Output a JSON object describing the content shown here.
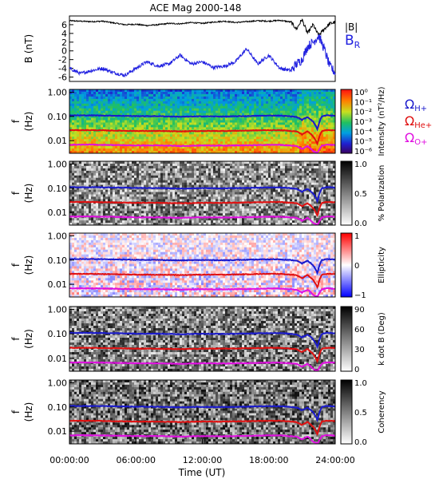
{
  "title": "ACE Mag 2000-148",
  "chart_data": [
    {
      "type": "line",
      "ylabel": "B (nT)",
      "ylim": [
        -7,
        8
      ],
      "yticks": [
        "-6",
        "-4",
        "-2",
        "0",
        "2",
        "4",
        "6"
      ],
      "legend": [
        {
          "label": "|B|",
          "color": "#000000"
        },
        {
          "label": "B",
          "sub": "R",
          "color": "#2020e0"
        }
      ],
      "series": [
        {
          "name": "|B|",
          "color": "#000000",
          "x": [
            0,
            1,
            2,
            3,
            4,
            5,
            6,
            7,
            8,
            9,
            10,
            11,
            12,
            13,
            14,
            15,
            16,
            17,
            18,
            19,
            20,
            20.5,
            21,
            21.5,
            22,
            22.5,
            23,
            23.5,
            24
          ],
          "y": [
            6.9,
            6.8,
            6.7,
            6.8,
            6.4,
            6.0,
            6.1,
            5.8,
            6.0,
            6.3,
            6.2,
            6.5,
            6.3,
            6.6,
            6.8,
            6.5,
            6.7,
            6.9,
            6.8,
            7.0,
            6.6,
            5.0,
            7.2,
            4.0,
            6.0,
            3.5,
            5.0,
            6.2,
            6.6
          ]
        },
        {
          "name": "B",
          "color": "#2020e0",
          "x": [
            0,
            1,
            2,
            3,
            4,
            5,
            6,
            7,
            8,
            9,
            10,
            11,
            12,
            13,
            14,
            15,
            16,
            17,
            18,
            19,
            20,
            20.5,
            21,
            21.5,
            22,
            22.5,
            23,
            23.5,
            24
          ],
          "y": [
            -4.0,
            -5.2,
            -4.5,
            -4.0,
            -5.0,
            -5.6,
            -4.0,
            -2.5,
            -3.5,
            -3.0,
            -1.0,
            -3.0,
            -2.5,
            -3.8,
            -3.5,
            -2.5,
            0.5,
            -3.0,
            -1.0,
            -4.0,
            -4.5,
            -3.0,
            -2.0,
            1.0,
            2.0,
            3.5,
            0.5,
            -3.5,
            -5.0
          ]
        }
      ]
    },
    {
      "type": "heatmap",
      "ylabel": "f (Hz)",
      "yscale": "log",
      "ylim": [
        0.003,
        1.3
      ],
      "yticks": [
        "1.00",
        "0.10",
        "0.01"
      ],
      "colorbar": {
        "label": "Intensity (nT²/Hz)",
        "ticks": [
          "10⁰",
          "10⁻¹",
          "10⁻²",
          "10⁻³",
          "10⁻⁴",
          "10⁻⁵",
          "10⁻⁶"
        ]
      },
      "legend": [
        {
          "label": "Ω",
          "sub": "H+",
          "color": "#1a1acc"
        },
        {
          "label": "Ω",
          "sub": "He+",
          "color": "#e01010"
        },
        {
          "label": "Ω",
          "sub": "O+",
          "color": "#e010e0"
        }
      ]
    },
    {
      "type": "heatmap",
      "ylabel": "f (Hz)",
      "yscale": "log",
      "ylim": [
        0.003,
        1.3
      ],
      "yticks": [
        "1.00",
        "0.10",
        "0.01"
      ],
      "colorbar": {
        "label": "% Polarization",
        "ticks": [
          "1.0",
          "0.5",
          "0.0"
        ]
      }
    },
    {
      "type": "heatmap",
      "ylabel": "f (Hz)",
      "yscale": "log",
      "ylim": [
        0.003,
        1.3
      ],
      "yticks": [
        "1.00",
        "0.10",
        "0.01"
      ],
      "colorbar": {
        "label": "Ellipticity",
        "ticks": [
          "1",
          "0",
          "−1"
        ]
      }
    },
    {
      "type": "heatmap",
      "ylabel": "f (Hz)",
      "yscale": "log",
      "ylim": [
        0.003,
        1.3
      ],
      "yticks": [
        "1.00",
        "0.10",
        "0.01"
      ],
      "colorbar": {
        "label": "k dot B (Deg)",
        "ticks": [
          "90",
          "60",
          "30",
          "0"
        ]
      }
    },
    {
      "type": "heatmap",
      "ylabel": "f (Hz)",
      "yscale": "log",
      "ylim": [
        0.003,
        1.3
      ],
      "yticks": [
        "1.00",
        "0.10",
        "0.01"
      ],
      "colorbar": {
        "label": "Coherency",
        "ticks": [
          "1.0",
          "0.5",
          "0.0"
        ]
      }
    }
  ],
  "cyclotron_lines": {
    "x": [
      0,
      2,
      4,
      6,
      8,
      10,
      12,
      14,
      16,
      18,
      19,
      20,
      20.5,
      21,
      21.5,
      22,
      22.4,
      22.8,
      23.2,
      23.6,
      24
    ],
    "h": [
      0.11,
      0.11,
      0.107,
      0.103,
      0.102,
      0.097,
      0.101,
      0.099,
      0.103,
      0.108,
      0.108,
      0.1,
      0.095,
      0.072,
      0.094,
      0.06,
      0.028,
      0.1,
      0.11,
      0.109,
      0.105
    ],
    "he": [
      0.027,
      0.027,
      0.026,
      0.025,
      0.025,
      0.024,
      0.025,
      0.025,
      0.026,
      0.027,
      0.027,
      0.025,
      0.024,
      0.018,
      0.024,
      0.015,
      0.007,
      0.025,
      0.027,
      0.027,
      0.026
    ],
    "o": [
      0.0068,
      0.0068,
      0.0066,
      0.0063,
      0.0063,
      0.006,
      0.0063,
      0.0062,
      0.0064,
      0.0067,
      0.0067,
      0.0062,
      0.006,
      0.0045,
      0.006,
      0.0037,
      0.003,
      0.0062,
      0.0068,
      0.0068,
      0.0065
    ]
  },
  "x_axis": {
    "label": "Time (UT)",
    "range": [
      0,
      24
    ],
    "ticks": [
      "00:00:00",
      "06:00:00",
      "12:00:00",
      "18:00:00",
      "24:00:00"
    ]
  }
}
